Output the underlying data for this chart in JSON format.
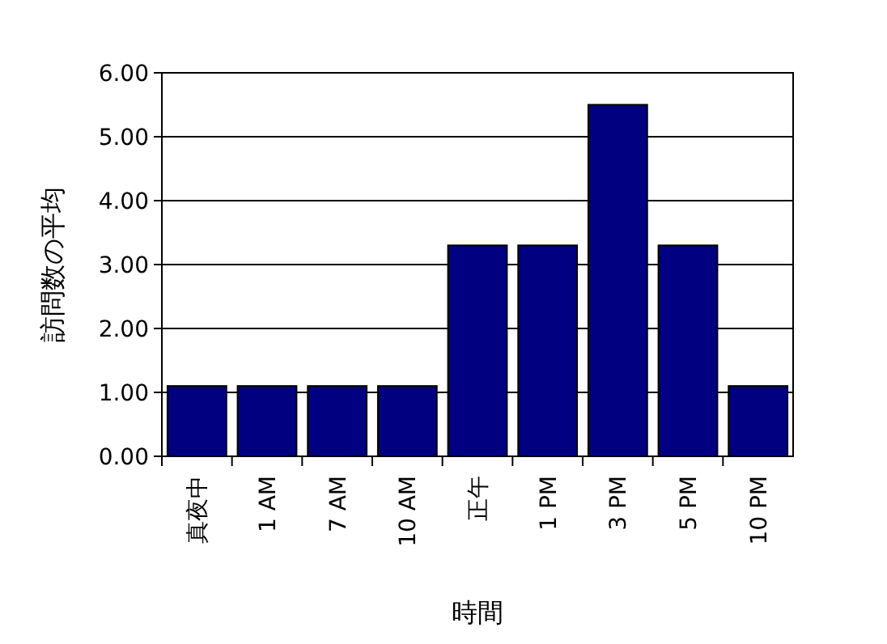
{
  "chart_data": {
    "type": "bar",
    "xlabel": "時間",
    "ylabel": "訪問数の平均",
    "categories": [
      "真夜中",
      "1 AM",
      "7 AM",
      "10 AM",
      "正午",
      "1 PM",
      "3 PM",
      "5 PM",
      "10 PM"
    ],
    "values": [
      1.1,
      1.1,
      1.1,
      1.1,
      3.3,
      3.3,
      5.5,
      3.3,
      1.1
    ],
    "color": "#000080",
    "ylim": [
      0,
      6
    ],
    "yticks": [
      {
        "value": 0,
        "label": "0.00"
      },
      {
        "value": 1,
        "label": "1.00"
      },
      {
        "value": 2,
        "label": "2.00"
      },
      {
        "value": 3,
        "label": "3.00"
      },
      {
        "value": 4,
        "label": "4.00"
      },
      {
        "value": 5,
        "label": "5.00"
      },
      {
        "value": 6,
        "label": "6.00"
      }
    ],
    "grid": "y"
  }
}
